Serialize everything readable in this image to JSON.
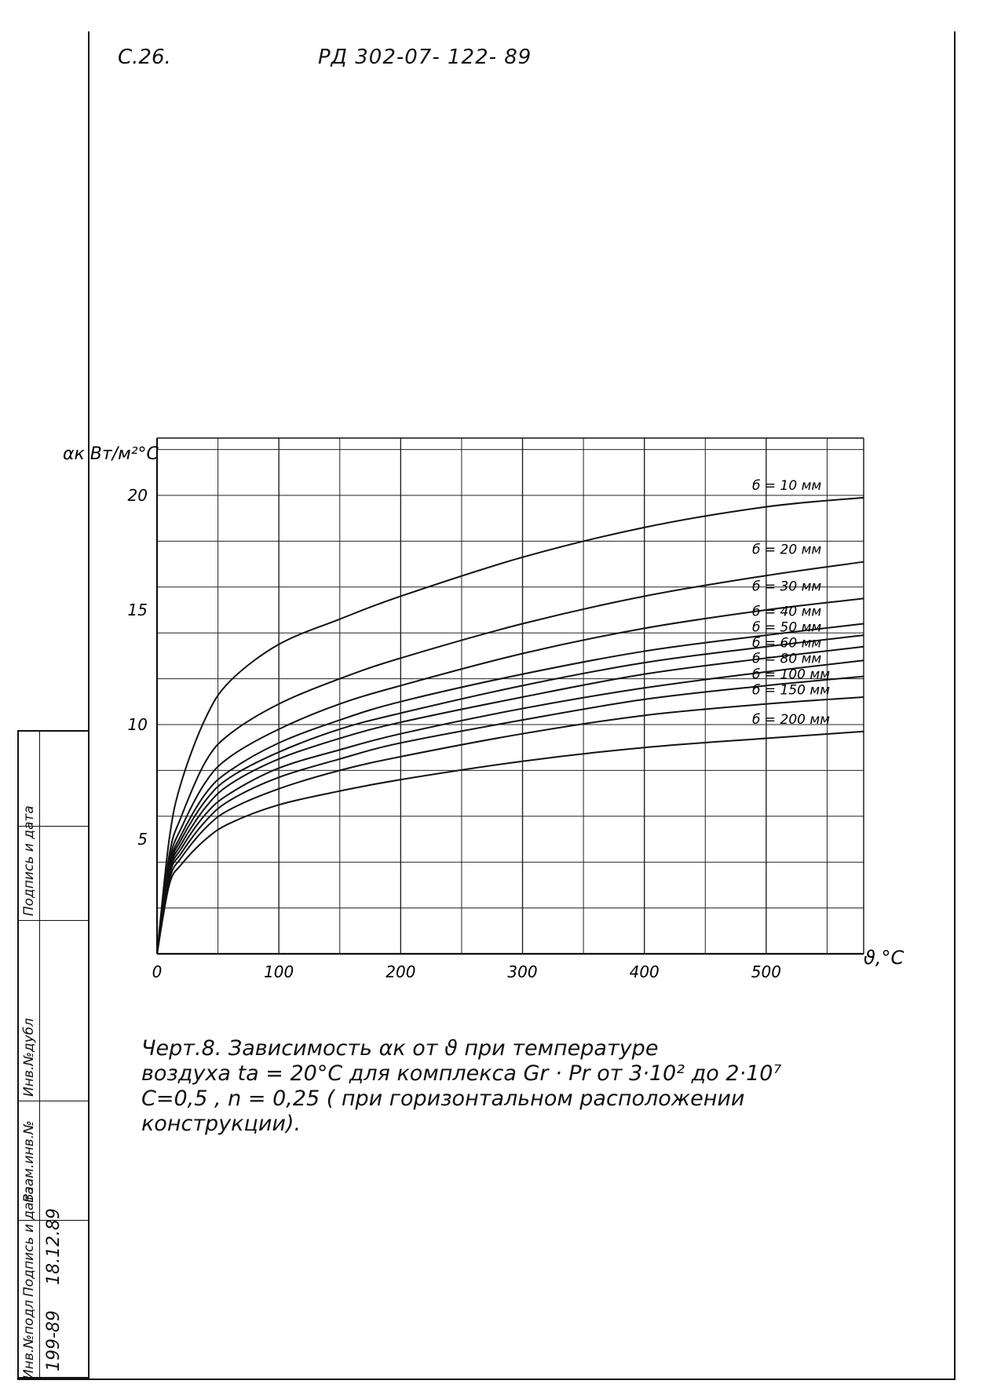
{
  "header": {
    "page": "С.26.",
    "code": "РД 302-07- 122- 89"
  },
  "chart_data": {
    "type": "line",
    "ylabel": "αк Вт/м²°С",
    "xlabel": "ϑ,°С",
    "xlim": [
      0,
      580
    ],
    "ylim": [
      0,
      22.5
    ],
    "x_ticks": [
      "0",
      "100",
      "200",
      "300",
      "400",
      "500"
    ],
    "y_ticks": [
      "5",
      "10",
      "15",
      "20"
    ],
    "grid": true,
    "x": [
      0,
      10,
      20,
      40,
      60,
      100,
      150,
      200,
      300,
      400,
      500,
      580
    ],
    "series": [
      {
        "name": "б = 10 мм",
        "values": [
          0,
          5.0,
          7.5,
          10.3,
          11.9,
          13.5,
          14.6,
          15.6,
          17.3,
          18.6,
          19.5,
          19.9
        ]
      },
      {
        "name": "б = 20 мм",
        "values": [
          0,
          4.3,
          6.0,
          8.4,
          9.6,
          10.9,
          12.0,
          12.9,
          14.4,
          15.6,
          16.5,
          17.1
        ]
      },
      {
        "name": "б = 30 мм",
        "values": [
          0,
          4.0,
          5.5,
          7.5,
          8.6,
          9.8,
          10.9,
          11.7,
          13.1,
          14.2,
          15.0,
          15.5
        ]
      },
      {
        "name": "б = 40 мм",
        "values": [
          0,
          3.8,
          5.2,
          7.0,
          8.0,
          9.2,
          10.2,
          11.0,
          12.2,
          13.2,
          13.9,
          14.4
        ]
      },
      {
        "name": "б = 50 мм",
        "values": [
          0,
          3.7,
          5.0,
          6.7,
          7.7,
          8.8,
          9.8,
          10.5,
          11.7,
          12.7,
          13.4,
          13.9
        ]
      },
      {
        "name": "б = 60 мм",
        "values": [
          0,
          3.6,
          4.8,
          6.4,
          7.4,
          8.5,
          9.4,
          10.1,
          11.2,
          12.2,
          12.9,
          13.4
        ]
      },
      {
        "name": "б = 80 мм",
        "values": [
          0,
          3.5,
          4.6,
          6.1,
          7.0,
          8.1,
          8.9,
          9.6,
          10.7,
          11.6,
          12.3,
          12.8
        ]
      },
      {
        "name": "б = 100 мм",
        "values": [
          0,
          3.4,
          4.4,
          5.8,
          6.7,
          7.7,
          8.5,
          9.2,
          10.2,
          11.1,
          11.7,
          12.1
        ]
      },
      {
        "name": "б = 150 мм",
        "values": [
          0,
          3.2,
          4.2,
          5.5,
          6.3,
          7.2,
          8.0,
          8.6,
          9.6,
          10.4,
          10.9,
          11.2
        ]
      },
      {
        "name": "б = 200 мм",
        "values": [
          0,
          3.0,
          3.9,
          5.0,
          5.7,
          6.5,
          7.1,
          7.6,
          8.4,
          9.0,
          9.4,
          9.7
        ]
      }
    ]
  },
  "caption": {
    "line1": "Черт.8. Зависимость  αк  от  ϑ при  температуре",
    "line2": "воздуха  tа = 20°С  для  комплекса  Gr · Pr  от 3·10² до 2·10⁷",
    "line3": "С=0,5 ,  n = 0,25 ( при горизонтальном расположении",
    "line4": "конструкции)."
  },
  "stamp": {
    "h1": "Инв.№подл",
    "h2": "Подпись и дата",
    "h3": "Взам.инв.№",
    "h4": "Инв.№дубл",
    "h5": "Подпись и дата",
    "v1": "199-89",
    "v2": "18.12.89"
  }
}
